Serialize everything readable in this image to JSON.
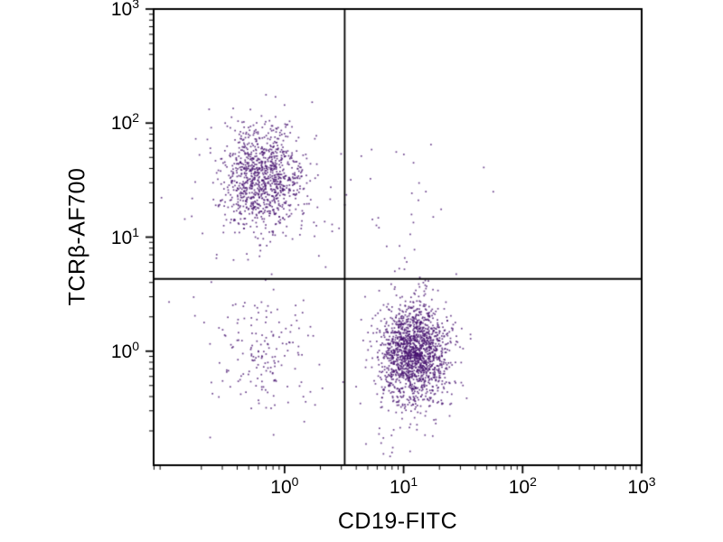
{
  "chart_data": {
    "type": "scatter",
    "title": "",
    "xlabel": "CD19-FITC",
    "ylabel": "TCRβ-AF700",
    "x_scale": "log",
    "y_scale": "log",
    "xlim_log10": [
      -1.1,
      3
    ],
    "ylim_log10": [
      -1,
      3
    ],
    "tick_base": "10",
    "x_tick_exponents": [
      0,
      1,
      2,
      3
    ],
    "y_tick_exponents": [
      0,
      1,
      2,
      3
    ],
    "grid": false,
    "legend": "none",
    "quadrant_gate": {
      "x": 3.2,
      "y": 4.3
    },
    "point_color": "#45106e",
    "point_alpha": 0.8,
    "populations": [
      {
        "name": "TCRb-pos CD19-neg core",
        "center_log10": [
          -0.2,
          1.53
        ],
        "sigma_log10": [
          0.17,
          0.22
        ],
        "n": 900
      },
      {
        "name": "TCRb-pos CD19-neg halo",
        "center_log10": [
          -0.15,
          1.45
        ],
        "sigma_log10": [
          0.3,
          0.35
        ],
        "n": 150
      },
      {
        "name": "CD19-pos TCRb-neg core",
        "center_log10": [
          1.08,
          0.0
        ],
        "sigma_log10": [
          0.14,
          0.2
        ],
        "n": 1400
      },
      {
        "name": "CD19-pos TCRb-neg tail",
        "center_log10": [
          1.05,
          -0.12
        ],
        "sigma_log10": [
          0.18,
          0.35
        ],
        "n": 260
      },
      {
        "name": "double-negative sparse",
        "center_log10": [
          -0.2,
          0.0
        ],
        "sigma_log10": [
          0.23,
          0.28
        ],
        "n": 170
      },
      {
        "name": "upper-right sparse",
        "center_log10": [
          1.05,
          1.3
        ],
        "sigma_log10": [
          0.3,
          0.4
        ],
        "n": 25
      }
    ]
  }
}
